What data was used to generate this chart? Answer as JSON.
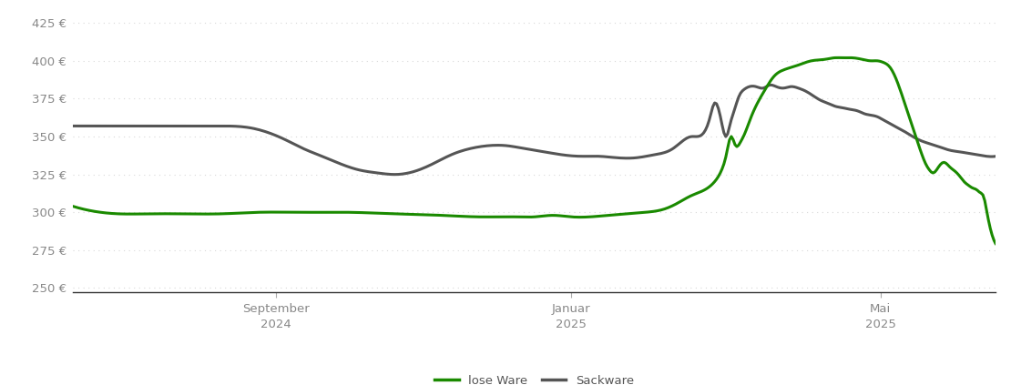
{
  "background_color": "#ffffff",
  "grid_color": "#d8d8d8",
  "line_color_lose": "#1a8a00",
  "line_color_sack": "#555555",
  "legend_labels": [
    "lose Ware",
    "Sackware"
  ],
  "x_tick_labels": [
    "September\n2024",
    "Januar\n2025",
    "Mai\n2025"
  ],
  "x_tick_positions": [
    0.22,
    0.54,
    0.875
  ],
  "ylim": [
    247,
    430
  ],
  "yticks": [
    250,
    275,
    300,
    325,
    350,
    375,
    400,
    425
  ],
  "lose_ware_x": [
    0.0,
    0.02,
    0.05,
    0.08,
    0.12,
    0.16,
    0.2,
    0.25,
    0.3,
    0.35,
    0.4,
    0.44,
    0.48,
    0.5,
    0.52,
    0.54,
    0.56,
    0.58,
    0.6,
    0.62,
    0.64,
    0.655,
    0.67,
    0.685,
    0.695,
    0.703,
    0.708,
    0.713,
    0.718,
    0.723,
    0.728,
    0.733,
    0.74,
    0.75,
    0.76,
    0.77,
    0.785,
    0.8,
    0.815,
    0.825,
    0.835,
    0.845,
    0.855,
    0.865,
    0.872,
    0.878,
    0.885,
    0.892,
    0.898,
    0.904,
    0.91,
    0.916,
    0.92,
    0.924,
    0.928,
    0.932,
    0.938,
    0.944,
    0.95,
    0.956,
    0.962,
    0.966,
    0.97,
    0.975,
    0.979,
    0.983,
    0.987,
    0.991,
    0.995,
    1.0
  ],
  "lose_ware_y": [
    304,
    301,
    299,
    299,
    299,
    299,
    300,
    300,
    300,
    299,
    298,
    297,
    297,
    297,
    298,
    297,
    297,
    298,
    299,
    300,
    302,
    306,
    311,
    315,
    320,
    328,
    338,
    350,
    344,
    346,
    352,
    360,
    370,
    381,
    390,
    394,
    397,
    400,
    401,
    402,
    402,
    402,
    401,
    400,
    400,
    399,
    396,
    388,
    378,
    367,
    356,
    345,
    338,
    332,
    328,
    326,
    330,
    333,
    330,
    327,
    323,
    320,
    318,
    316,
    315,
    313,
    310,
    298,
    287,
    279
  ],
  "sackware_x": [
    0.0,
    0.04,
    0.08,
    0.12,
    0.16,
    0.19,
    0.21,
    0.23,
    0.25,
    0.27,
    0.29,
    0.31,
    0.33,
    0.35,
    0.37,
    0.39,
    0.41,
    0.43,
    0.45,
    0.47,
    0.49,
    0.51,
    0.53,
    0.55,
    0.57,
    0.59,
    0.61,
    0.63,
    0.65,
    0.67,
    0.69,
    0.695,
    0.702,
    0.708,
    0.712,
    0.717,
    0.722,
    0.727,
    0.733,
    0.74,
    0.748,
    0.755,
    0.762,
    0.77,
    0.778,
    0.786,
    0.794,
    0.802,
    0.81,
    0.818,
    0.826,
    0.834,
    0.842,
    0.85,
    0.858,
    0.866,
    0.872,
    0.878,
    0.884,
    0.89,
    0.896,
    0.902,
    0.91,
    0.92,
    0.93,
    0.94,
    0.95,
    0.96,
    0.97,
    0.98,
    0.99,
    1.0
  ],
  "sackware_y": [
    357,
    357,
    357,
    357,
    357,
    356,
    353,
    348,
    342,
    337,
    332,
    328,
    326,
    325,
    327,
    332,
    338,
    342,
    344,
    344,
    342,
    340,
    338,
    337,
    337,
    336,
    336,
    338,
    342,
    350,
    362,
    372,
    362,
    350,
    358,
    368,
    377,
    381,
    383,
    383,
    382,
    384,
    383,
    382,
    383,
    382,
    380,
    377,
    374,
    372,
    370,
    369,
    368,
    367,
    365,
    364,
    363,
    361,
    359,
    357,
    355,
    353,
    350,
    347,
    345,
    343,
    341,
    340,
    339,
    338,
    337,
    337
  ]
}
